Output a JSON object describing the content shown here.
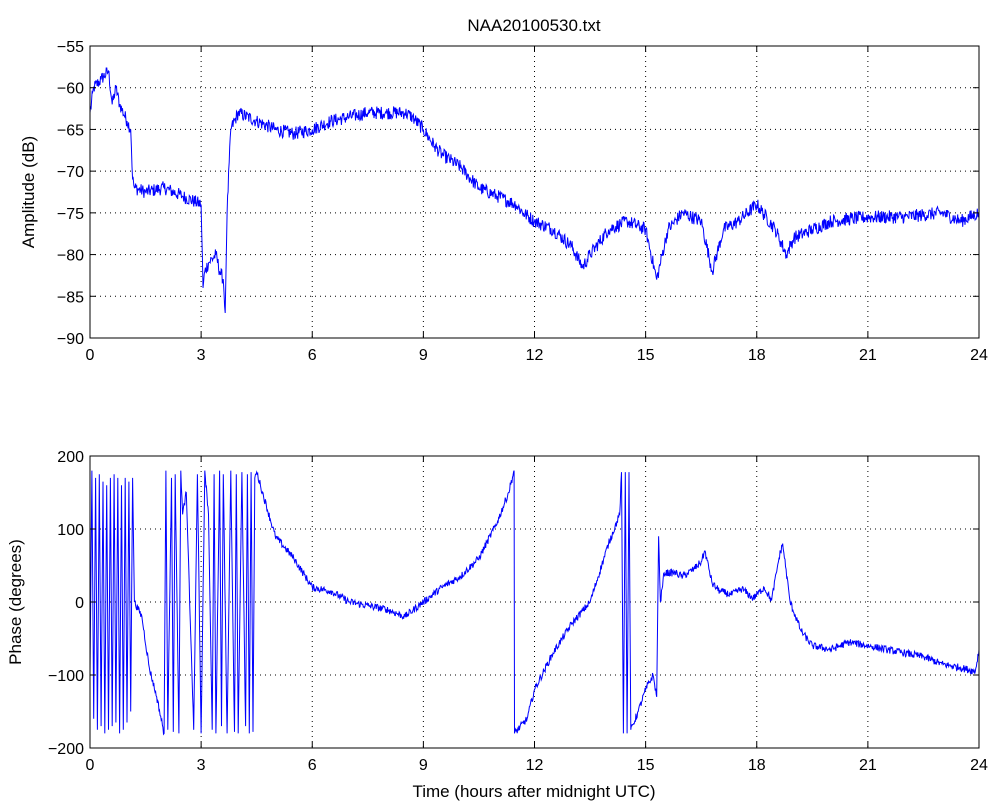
{
  "figure_title": "NAA20100530.txt",
  "colors": {
    "series": "#0000ff",
    "axes": "#000000",
    "grid": "#000000",
    "background": "#ffffff"
  },
  "chart_data": [
    {
      "type": "line",
      "title": "NAA20100530.txt",
      "xlabel": "",
      "ylabel": "Amplitude (dB)",
      "xlim": [
        0,
        24
      ],
      "ylim": [
        -90,
        -55
      ],
      "xticks": [
        0,
        3,
        6,
        9,
        12,
        15,
        18,
        21,
        24
      ],
      "yticks": [
        -90,
        -85,
        -80,
        -75,
        -70,
        -65,
        -60,
        -55
      ],
      "grid": true,
      "series": [
        {
          "noise": 0.8,
          "x": [
            0,
            0.1,
            0.3,
            0.5,
            0.6,
            0.7,
            0.8,
            1.0,
            1.1,
            1.15,
            1.2,
            1.5,
            2.0,
            2.5,
            3.0,
            3.05,
            3.1,
            3.2,
            3.4,
            3.5,
            3.6,
            3.65,
            3.7,
            3.8,
            4.0,
            4.5,
            5.0,
            5.5,
            6.0,
            6.5,
            7.0,
            7.5,
            8.0,
            8.5,
            8.7,
            9.0,
            9.3,
            9.5,
            10.0,
            10.5,
            11.0,
            11.5,
            11.7,
            12.0,
            12.5,
            13.0,
            13.3,
            13.5,
            14.0,
            14.5,
            15.0,
            15.3,
            15.6,
            16.0,
            16.5,
            16.8,
            17.1,
            17.5,
            18.0,
            18.5,
            18.8,
            19.0,
            19.5,
            20.0,
            21.0,
            22.0,
            23.0,
            23.5,
            24.0
          ],
          "y": [
            -63,
            -60,
            -59,
            -58,
            -62,
            -60,
            -62,
            -64,
            -65,
            -71,
            -72,
            -72.5,
            -72,
            -73,
            -74,
            -84,
            -82,
            -81,
            -80,
            -82,
            -83,
            -87,
            -75,
            -65,
            -63,
            -64,
            -65,
            -65.5,
            -65,
            -64,
            -63.5,
            -63,
            -63,
            -63,
            -63.5,
            -65,
            -67,
            -68,
            -69.5,
            -72,
            -73,
            -74,
            -75,
            -76,
            -77,
            -79,
            -81.5,
            -80,
            -77,
            -76,
            -77,
            -83,
            -77,
            -75,
            -76,
            -82,
            -77,
            -76,
            -74,
            -77,
            -80,
            -78,
            -77,
            -76,
            -75.5,
            -75.5,
            -75,
            -76,
            -75
          ]
        }
      ]
    },
    {
      "type": "line",
      "title": "",
      "xlabel": "Time (hours after midnight UTC)",
      "ylabel": "Phase (degrees)",
      "xlim": [
        0,
        24
      ],
      "ylim": [
        -200,
        200
      ],
      "xticks": [
        0,
        3,
        6,
        9,
        12,
        15,
        18,
        21,
        24
      ],
      "yticks": [
        -200,
        -100,
        0,
        100,
        200
      ],
      "grid": true,
      "series": [
        {
          "noise": 5,
          "x": [
            0,
            0.05,
            0.1,
            0.15,
            0.2,
            0.25,
            0.3,
            0.35,
            0.4,
            0.45,
            0.5,
            0.55,
            0.6,
            0.65,
            0.7,
            0.75,
            0.8,
            0.85,
            0.9,
            0.95,
            1.0,
            1.05,
            1.1,
            1.15,
            1.2,
            1.4,
            1.6,
            1.8,
            2.0,
            2.05,
            2.1,
            2.2,
            2.25,
            2.3,
            2.4,
            2.45,
            2.5,
            2.6,
            2.8,
            2.9,
            3.0,
            3.1,
            3.2,
            3.3,
            3.35,
            3.4,
            3.5,
            3.55,
            3.6,
            3.7,
            3.8,
            3.9,
            3.95,
            4.0,
            4.1,
            4.2,
            4.25,
            4.3,
            4.35,
            4.4,
            4.45,
            4.5,
            4.6,
            5.0,
            5.5,
            6.0,
            6.5,
            7.0,
            7.5,
            8.0,
            8.5,
            9.0,
            9.5,
            10.0,
            10.5,
            11.0,
            11.3,
            11.45,
            11.46,
            11.8,
            12.0,
            12.5,
            13.0,
            13.5,
            14.0,
            14.3,
            14.35,
            14.4,
            14.45,
            14.5,
            14.55,
            14.6,
            14.8,
            15.0,
            15.2,
            15.3,
            15.35,
            15.4,
            15.5,
            15.8,
            16.0,
            16.3,
            16.5,
            16.6,
            16.8,
            17.0,
            17.3,
            17.6,
            17.9,
            18.2,
            18.4,
            18.6,
            18.7,
            18.9,
            19.2,
            19.5,
            20.0,
            20.5,
            21.0,
            21.5,
            22.0,
            22.5,
            23.0,
            23.5,
            23.9,
            24.0
          ],
          "y": [
            -100,
            180,
            -160,
            170,
            -175,
            175,
            -170,
            165,
            -180,
            160,
            -175,
            170,
            -170,
            175,
            -165,
            170,
            -180,
            160,
            -175,
            170,
            -165,
            165,
            -150,
            170,
            0,
            -20,
            -90,
            -130,
            -180,
            180,
            -175,
            170,
            -178,
            175,
            -180,
            180,
            120,
            150,
            -175,
            175,
            -180,
            180,
            120,
            -175,
            175,
            -180,
            180,
            -170,
            175,
            -180,
            180,
            -178,
            175,
            -180,
            178,
            -170,
            175,
            -180,
            178,
            -178,
            170,
            178,
            160,
            90,
            60,
            20,
            15,
            0,
            -5,
            -10,
            -20,
            0,
            20,
            35,
            60,
            110,
            150,
            180,
            -180,
            -160,
            -120,
            -70,
            -30,
            0,
            80,
            120,
            178,
            -180,
            178,
            -180,
            178,
            -175,
            -150,
            -120,
            -100,
            -130,
            90,
            0,
            40,
            40,
            35,
            45,
            55,
            70,
            25,
            15,
            10,
            18,
            5,
            20,
            2,
            60,
            80,
            0,
            -40,
            -60,
            -65,
            -55,
            -60,
            -65,
            -70,
            -75,
            -85,
            -90,
            -95,
            -65
          ]
        }
      ]
    }
  ]
}
